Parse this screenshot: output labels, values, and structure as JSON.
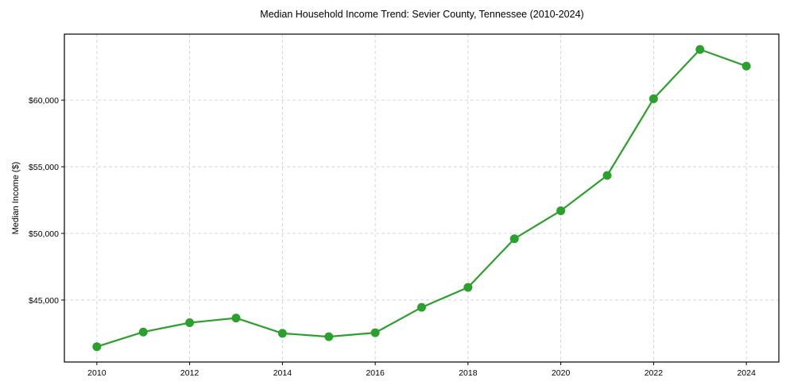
{
  "chart_data": {
    "type": "line",
    "title": "Median Household Income Trend: Sevier County, Tennessee (2010-2024)",
    "xlabel": "",
    "ylabel": "Median Income ($)",
    "x": [
      2010,
      2011,
      2012,
      2013,
      2014,
      2015,
      2016,
      2017,
      2018,
      2019,
      2020,
      2021,
      2022,
      2023,
      2024
    ],
    "series": [
      {
        "name": "Median Household Income",
        "color": "#2ca02c",
        "values": [
          41500,
          42600,
          43300,
          43650,
          42500,
          42250,
          42550,
          44450,
          45950,
          49600,
          51700,
          54350,
          60100,
          63800,
          62550
        ]
      }
    ],
    "xticks": [
      2010,
      2012,
      2014,
      2016,
      2018,
      2020,
      2022,
      2024
    ],
    "xtick_labels": [
      "2010",
      "2012",
      "2014",
      "2016",
      "2018",
      "2020",
      "2022",
      "2024"
    ],
    "yticks": [
      45000,
      50000,
      55000,
      60000
    ],
    "ytick_labels": [
      "$45,000",
      "$50,000",
      "$55,000",
      "$60,000"
    ],
    "xlim": [
      2009.3,
      2024.7
    ],
    "ylim": [
      40350,
      64950
    ],
    "grid": true,
    "grid_style": "dashed",
    "legend": null,
    "marker": "circle"
  }
}
